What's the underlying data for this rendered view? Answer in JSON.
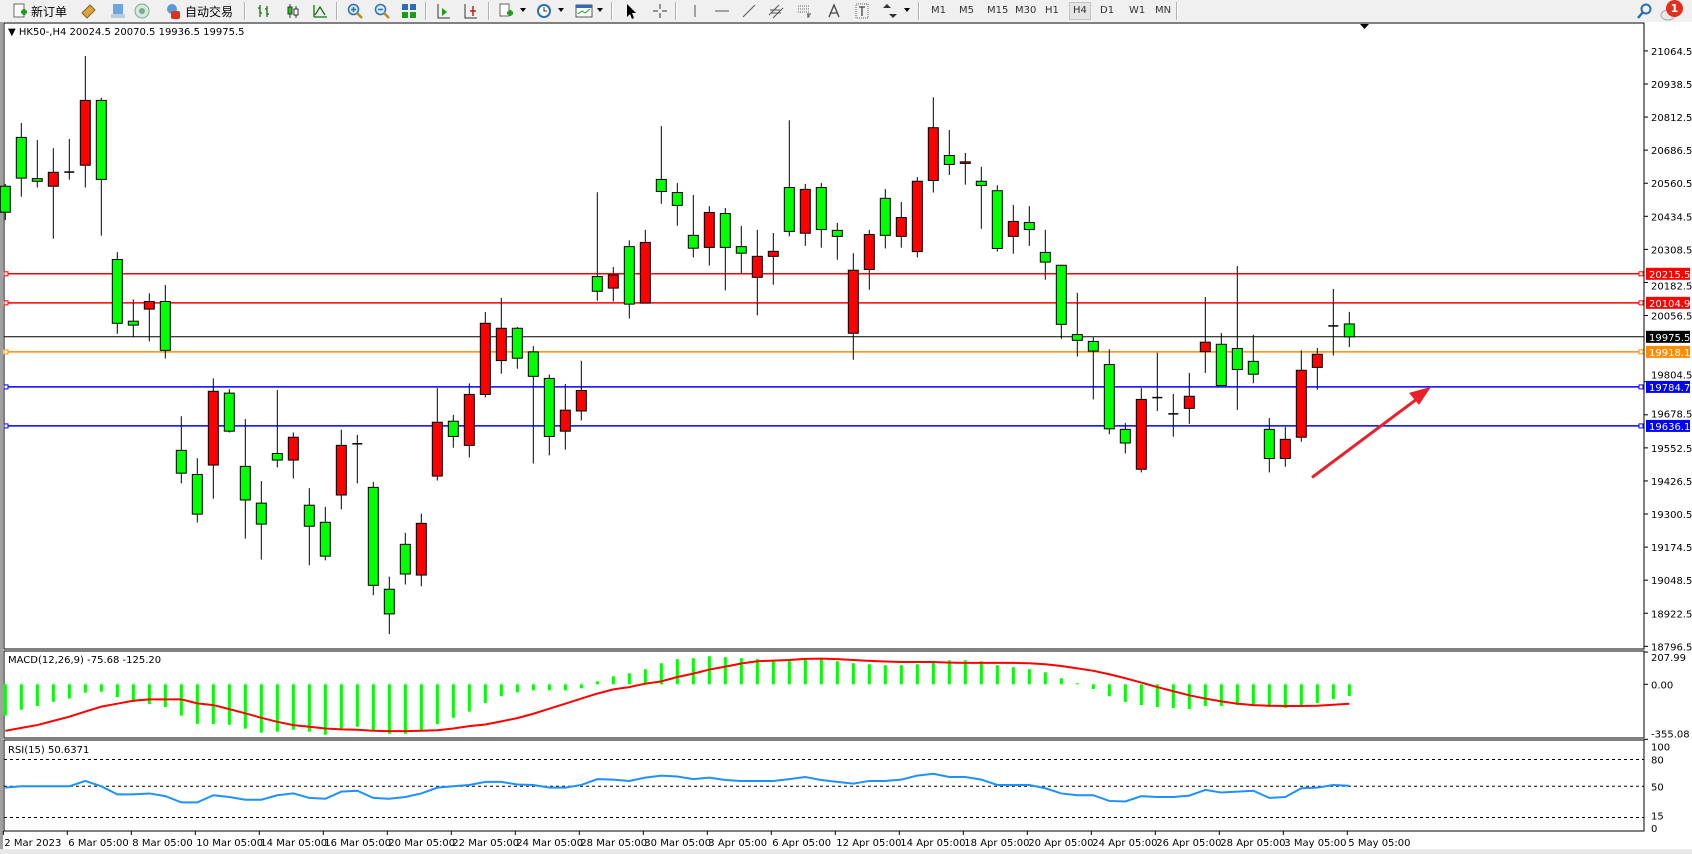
{
  "toolbar": {
    "new_order_label": "新订单",
    "auto_trade_label": "自动交易",
    "periods": [
      "M1",
      "M5",
      "M15",
      "M30",
      "H1",
      "H4",
      "D1",
      "W1",
      "MN"
    ],
    "active_period": "H4",
    "notification_count": "1"
  },
  "chart": {
    "header": "HK50-,H4  20024.5 20070.5 19936.5 19975.5",
    "symbol": "HK50-",
    "timeframe": "H4",
    "colors": {
      "bull_body": "#ff0000",
      "bear_body": "#00ff00",
      "wick": "#000000",
      "background": "#ffffff"
    },
    "price_ticks": [
      "21064.5",
      "20938.5",
      "20812.5",
      "20686.5",
      "20560.5",
      "20434.5",
      "20308.5",
      "20182.5",
      "20056.5",
      "19804.5",
      "19678.5",
      "19552.5",
      "19426.5",
      "19300.5",
      "19174.5",
      "19048.5",
      "18922.5",
      "18796.5"
    ],
    "current_price": {
      "value": 19975.5,
      "label": "19975.5",
      "color": "#000000"
    },
    "horizontal_lines": [
      {
        "value": 20215.5,
        "label": "20215.5",
        "color": "#ff0000"
      },
      {
        "value": 20104.9,
        "label": "20104.9",
        "color": "#ff0000"
      },
      {
        "value": 19918.1,
        "label": "19918.1",
        "color": "#ff8c00"
      },
      {
        "value": 19784.7,
        "label": "19784.7",
        "color": "#0000ff"
      },
      {
        "value": 19636.1,
        "label": "19636.1",
        "color": "#0000ff"
      }
    ],
    "annotation_arrow": {
      "color": "#e8202a",
      "from_price": 19440,
      "to_price": 19784.7
    },
    "date_labels": [
      "2 Mar 2023",
      "6 Mar 05:00",
      "8 Mar 05:00",
      "10 Mar 05:00",
      "14 Mar 05:00",
      "16 Mar 05:00",
      "20 Mar 05:00",
      "22 Mar 05:00",
      "24 Mar 05:00",
      "28 Mar 05:00",
      "30 Mar 05:00",
      "3 Apr 05:00",
      "6 Apr 05:00",
      "12 Apr 05:00",
      "14 Apr 05:00",
      "18 Apr 05:00",
      "20 Apr 05:00",
      "24 Apr 05:00",
      "26 Apr 05:00",
      "28 Apr 05:00",
      "3 May 05:00",
      "5 May 05:00"
    ]
  },
  "chart_data": {
    "type": "candlestick",
    "ohlc_columns": [
      "open",
      "high",
      "low",
      "close"
    ],
    "ylim": [
      18796.5,
      21064.5
    ],
    "candles": [
      [
        20549,
        20558,
        20420,
        20450
      ],
      [
        20735,
        20790,
        20509,
        20580
      ],
      [
        20578,
        20725,
        20544,
        20568
      ],
      [
        20549,
        20694,
        20349,
        20602
      ],
      [
        20598,
        20729,
        20574,
        20603
      ],
      [
        20629,
        21045,
        20544,
        20876
      ],
      [
        20876,
        20886,
        20361,
        20575
      ],
      [
        20270,
        20298,
        19987,
        20027
      ],
      [
        20035,
        20118,
        19974,
        20020
      ],
      [
        20081,
        20141,
        19958,
        20110
      ],
      [
        20110,
        20173,
        19893,
        19924
      ],
      [
        19543,
        19673,
        19417,
        19456
      ],
      [
        19451,
        19513,
        19268,
        19300
      ],
      [
        19487,
        19817,
        19359,
        19768
      ],
      [
        19761,
        19776,
        19611,
        19616
      ],
      [
        19482,
        19662,
        19207,
        19354
      ],
      [
        19342,
        19426,
        19127,
        19262
      ],
      [
        19531,
        19773,
        19478,
        19506
      ],
      [
        19506,
        19611,
        19436,
        19593
      ],
      [
        19334,
        19399,
        19105,
        19254
      ],
      [
        19269,
        19328,
        19124,
        19140
      ],
      [
        19373,
        19622,
        19318,
        19562
      ],
      [
        19568,
        19602,
        19417,
        19567
      ],
      [
        19402,
        19423,
        18991,
        19029
      ],
      [
        19014,
        19062,
        18843,
        18920
      ],
      [
        19185,
        19229,
        19032,
        19072
      ],
      [
        19068,
        19302,
        19025,
        19265
      ],
      [
        19445,
        19780,
        19428,
        19650
      ],
      [
        19654,
        19678,
        19553,
        19596
      ],
      [
        19562,
        19798,
        19516,
        19756
      ],
      [
        19756,
        20070,
        19745,
        20027
      ],
      [
        19885,
        20124,
        19835,
        20008
      ],
      [
        20008,
        20013,
        19854,
        19894
      ],
      [
        19918,
        19940,
        19493,
        19825
      ],
      [
        19817,
        19832,
        19524,
        19596
      ],
      [
        19616,
        19796,
        19546,
        19696
      ],
      [
        19693,
        19884,
        19657,
        19771
      ],
      [
        20205,
        20526,
        20113,
        20149
      ],
      [
        20161,
        20241,
        20110,
        20211
      ],
      [
        20319,
        20343,
        20045,
        20100
      ],
      [
        20104,
        20383,
        20104,
        20335
      ],
      [
        20575,
        20778,
        20482,
        20529
      ],
      [
        20525,
        20561,
        20399,
        20476
      ],
      [
        20362,
        20516,
        20278,
        20313
      ],
      [
        20316,
        20473,
        20247,
        20449
      ],
      [
        20445,
        20466,
        20152,
        20316
      ],
      [
        20319,
        20398,
        20217,
        20294
      ],
      [
        20202,
        20383,
        20057,
        20282
      ],
      [
        20282,
        20371,
        20174,
        20301
      ],
      [
        20544,
        20800,
        20358,
        20377
      ],
      [
        20370,
        20558,
        20322,
        20537
      ],
      [
        20544,
        20561,
        20315,
        20384
      ],
      [
        20381,
        20409,
        20269,
        20358
      ],
      [
        19989,
        20294,
        19888,
        20229
      ],
      [
        20232,
        20383,
        20155,
        20365
      ],
      [
        20503,
        20538,
        20312,
        20362
      ],
      [
        20358,
        20489,
        20315,
        20430
      ],
      [
        20300,
        20584,
        20278,
        20568
      ],
      [
        20571,
        20888,
        20525,
        20772
      ],
      [
        20666,
        20763,
        20592,
        20632
      ],
      [
        20636,
        20676,
        20555,
        20642
      ],
      [
        20568,
        20623,
        20387,
        20552
      ],
      [
        20532,
        20553,
        20300,
        20312
      ],
      [
        20358,
        20478,
        20292,
        20415
      ],
      [
        20411,
        20473,
        20322,
        20384
      ],
      [
        20297,
        20383,
        20193,
        20260
      ],
      [
        20248,
        20250,
        19968,
        20023
      ],
      [
        19984,
        20143,
        19900,
        19962
      ],
      [
        19958,
        19973,
        19737,
        19921
      ],
      [
        19870,
        19928,
        19604,
        19625
      ],
      [
        19623,
        19647,
        19531,
        19571
      ],
      [
        19471,
        19780,
        19459,
        19737
      ],
      [
        19744,
        19915,
        19693,
        19743
      ],
      [
        19682,
        19758,
        19595,
        19682
      ],
      [
        19703,
        19838,
        19644,
        19749
      ],
      [
        19919,
        20127,
        19838,
        19955
      ],
      [
        19947,
        19990,
        19788,
        19790
      ],
      [
        19931,
        20245,
        19697,
        19851
      ],
      [
        19882,
        19983,
        19799,
        19833
      ],
      [
        19623,
        19666,
        19459,
        19512
      ],
      [
        19512,
        19632,
        19481,
        19585
      ],
      [
        19593,
        19924,
        19576,
        19848
      ],
      [
        19859,
        19933,
        19774,
        19909
      ],
      [
        20013,
        20158,
        19904,
        20017
      ],
      [
        20024.5,
        20070.5,
        19936.5,
        19975.5
      ]
    ],
    "macd": {
      "label": "MACD(12,26,9) -75.68 -125.20",
      "ticks": [
        "207.99",
        "0.00",
        "-355.08"
      ],
      "ylim": [
        -355.08,
        207.99
      ],
      "colors": {
        "histogram": "#00ff00",
        "signal": "#ff0000"
      },
      "main": [
        -202,
        -164,
        -140,
        -113,
        -92,
        -54,
        -48,
        -82,
        -113,
        -128,
        -147,
        -202,
        -255,
        -256,
        -261,
        -286,
        -312,
        -306,
        -293,
        -306,
        -326,
        -291,
        -274,
        -296,
        -319,
        -319,
        -300,
        -257,
        -216,
        -176,
        -121,
        -77,
        -52,
        -39,
        -39,
        -39,
        -26,
        19,
        52,
        71,
        97,
        136,
        162,
        168,
        181,
        175,
        168,
        162,
        155,
        155,
        162,
        162,
        149,
        136,
        129,
        123,
        123,
        129,
        140,
        155,
        155,
        149,
        123,
        110,
        97,
        77,
        39,
        7,
        -30,
        -77,
        -114,
        -134,
        -147,
        -153,
        -160,
        -140,
        -140,
        -134,
        -134,
        -147,
        -153,
        -140,
        -121,
        -95,
        -75.68
      ],
      "signal": [
        -300,
        -281,
        -263,
        -236,
        -209,
        -176,
        -144,
        -125,
        -106,
        -97,
        -97,
        -97,
        -123,
        -134,
        -160,
        -187,
        -216,
        -242,
        -263,
        -274,
        -285,
        -291,
        -293,
        -300,
        -302,
        -302,
        -300,
        -296,
        -285,
        -270,
        -259,
        -239,
        -218,
        -190,
        -157,
        -125,
        -92,
        -60,
        -33,
        -18,
        4,
        19,
        47,
        69,
        95,
        114,
        134,
        149,
        153,
        157,
        164,
        166,
        162,
        157,
        151,
        147,
        144,
        144,
        144,
        140,
        138,
        138,
        138,
        138,
        136,
        129,
        118,
        103,
        87,
        65,
        39,
        11,
        -18,
        -45,
        -71,
        -92,
        -110,
        -125,
        -134,
        -138,
        -140,
        -140,
        -138,
        -132,
        -125.2
      ]
    },
    "rsi": {
      "label": "RSI(15) 50.6371",
      "ticks": [
        "100",
        "80",
        "50",
        "15",
        "0"
      ],
      "levels": [
        80,
        50,
        15
      ],
      "ylim": [
        0,
        100
      ],
      "color": "#1e90ff",
      "values": [
        48.5,
        50,
        50,
        50,
        50,
        56,
        50,
        41,
        41,
        42,
        39,
        32,
        32,
        40,
        38,
        35,
        35,
        40,
        42,
        37,
        36,
        44,
        45,
        37,
        36,
        38,
        42,
        48.5,
        50,
        51.5,
        55,
        55,
        52,
        51.5,
        48.5,
        48.5,
        51.5,
        58,
        57.5,
        56,
        59.7,
        62,
        61,
        58,
        59.7,
        57,
        56,
        56,
        56,
        58,
        60.4,
        57,
        55,
        53,
        56,
        56,
        57.5,
        62,
        64,
        60.4,
        60.4,
        57.5,
        51.5,
        51.5,
        51.5,
        47.8,
        42,
        40,
        40,
        33.6,
        33,
        39,
        38,
        38,
        39.6,
        46,
        43,
        44,
        45,
        37,
        38,
        47.8,
        48.5,
        51.5,
        50.6371
      ]
    }
  }
}
